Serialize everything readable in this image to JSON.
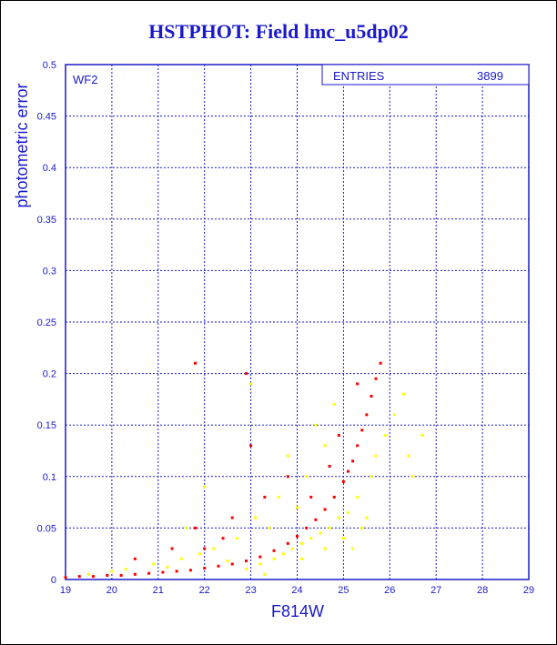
{
  "chart_data": {
    "type": "scatter",
    "title": "HSTPHOT: Field lmc_u5dp02",
    "xlabel": "F814W",
    "ylabel": "photometric error",
    "panel_label": "WF2",
    "stats": {
      "label": "ENTRIES",
      "value": "3899"
    },
    "xlim": [
      19,
      29
    ],
    "ylim": [
      0,
      0.5
    ],
    "x_ticks": [
      "19",
      "20",
      "21",
      "22",
      "23",
      "24",
      "25",
      "26",
      "27",
      "28",
      "29"
    ],
    "y_ticks": [
      "0",
      "0.05",
      "0.1",
      "0.15",
      "0.2",
      "0.25",
      "0.3",
      "0.35",
      "0.4",
      "0.45",
      "0.5"
    ],
    "grid": true,
    "series": [
      {
        "color": "#ff0000",
        "points": [
          [
            19.0,
            0.002
          ],
          [
            19.3,
            0.003
          ],
          [
            19.6,
            0.003
          ],
          [
            19.9,
            0.004
          ],
          [
            20.2,
            0.004
          ],
          [
            20.5,
            0.005
          ],
          [
            20.8,
            0.006
          ],
          [
            21.1,
            0.007
          ],
          [
            21.4,
            0.008
          ],
          [
            21.7,
            0.009
          ],
          [
            22.0,
            0.011
          ],
          [
            22.3,
            0.013
          ],
          [
            22.6,
            0.015
          ],
          [
            22.9,
            0.018
          ],
          [
            23.2,
            0.022
          ],
          [
            23.5,
            0.028
          ],
          [
            23.8,
            0.035
          ],
          [
            24.0,
            0.042
          ],
          [
            24.2,
            0.05
          ],
          [
            24.4,
            0.058
          ],
          [
            24.6,
            0.068
          ],
          [
            24.8,
            0.08
          ],
          [
            25.0,
            0.095
          ],
          [
            25.1,
            0.105
          ],
          [
            25.2,
            0.115
          ],
          [
            25.3,
            0.13
          ],
          [
            25.4,
            0.145
          ],
          [
            25.5,
            0.16
          ],
          [
            25.6,
            0.178
          ],
          [
            25.7,
            0.195
          ],
          [
            25.8,
            0.21
          ],
          [
            21.8,
            0.21
          ],
          [
            22.9,
            0.2
          ],
          [
            23.0,
            0.13
          ],
          [
            23.3,
            0.08
          ],
          [
            22.6,
            0.06
          ],
          [
            21.8,
            0.05
          ],
          [
            22.0,
            0.03
          ],
          [
            24.3,
            0.08
          ],
          [
            24.7,
            0.11
          ],
          [
            24.9,
            0.14
          ],
          [
            25.3,
            0.19
          ],
          [
            23.8,
            0.1
          ],
          [
            22.4,
            0.04
          ],
          [
            20.5,
            0.02
          ],
          [
            21.3,
            0.03
          ]
        ]
      },
      {
        "color": "#ffff00",
        "points": [
          [
            19.5,
            0.005
          ],
          [
            20.3,
            0.01
          ],
          [
            20.9,
            0.015
          ],
          [
            21.5,
            0.02
          ],
          [
            21.9,
            0.025
          ],
          [
            22.2,
            0.03
          ],
          [
            22.5,
            0.018
          ],
          [
            22.7,
            0.04
          ],
          [
            22.9,
            0.01
          ],
          [
            23.1,
            0.06
          ],
          [
            23.2,
            0.015
          ],
          [
            23.4,
            0.05
          ],
          [
            23.5,
            0.02
          ],
          [
            23.6,
            0.08
          ],
          [
            23.7,
            0.025
          ],
          [
            23.8,
            0.12
          ],
          [
            23.9,
            0.03
          ],
          [
            24.0,
            0.07
          ],
          [
            24.1,
            0.035
          ],
          [
            24.2,
            0.1
          ],
          [
            24.3,
            0.04
          ],
          [
            24.4,
            0.15
          ],
          [
            24.5,
            0.045
          ],
          [
            24.6,
            0.13
          ],
          [
            24.7,
            0.05
          ],
          [
            24.8,
            0.17
          ],
          [
            24.9,
            0.06
          ],
          [
            25.0,
            0.04
          ],
          [
            25.1,
            0.065
          ],
          [
            25.2,
            0.03
          ],
          [
            25.3,
            0.08
          ],
          [
            25.4,
            0.05
          ],
          [
            25.5,
            0.06
          ],
          [
            25.6,
            0.1
          ],
          [
            25.7,
            0.12
          ],
          [
            25.9,
            0.14
          ],
          [
            26.1,
            0.16
          ],
          [
            26.3,
            0.18
          ],
          [
            26.4,
            0.12
          ],
          [
            26.5,
            0.1
          ],
          [
            26.7,
            0.14
          ],
          [
            23.0,
            0.19
          ],
          [
            22.0,
            0.09
          ],
          [
            21.6,
            0.05
          ],
          [
            24.1,
            0.02
          ],
          [
            23.3,
            0.005
          ],
          [
            24.6,
            0.03
          ],
          [
            20.0,
            0.008
          ],
          [
            21.2,
            0.012
          ]
        ]
      }
    ]
  }
}
